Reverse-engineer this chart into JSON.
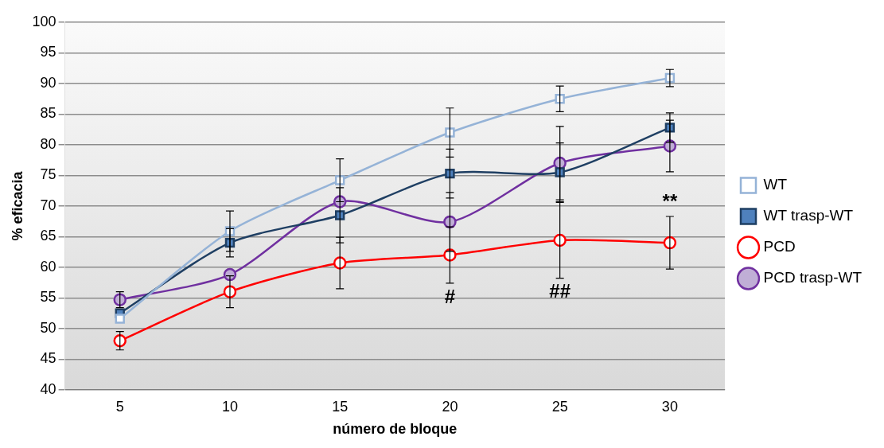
{
  "chart_data": {
    "type": "line",
    "xlabel": "número de bloque",
    "ylabel": "% eficacia",
    "categories": [
      "5",
      "10",
      "15",
      "20",
      "25",
      "30"
    ],
    "ylim": [
      40,
      100
    ],
    "yticks": [
      40,
      45,
      50,
      55,
      60,
      65,
      70,
      75,
      80,
      85,
      90,
      95,
      100
    ],
    "grid": "y",
    "legend": "right",
    "series": [
      {
        "name": "WT",
        "color": "#95b3d7",
        "marker": "square",
        "values": [
          51.6,
          65.9,
          74.2,
          82,
          87.5,
          90.9
        ],
        "errors": [
          null,
          3.3,
          3.5,
          4,
          2.1,
          1.4
        ]
      },
      {
        "name": "WT trasp-WT",
        "color": "#1f3f63",
        "marker": "square",
        "values": [
          52.5,
          64,
          68.5,
          75.3,
          75.5,
          82.8
        ],
        "errors": [
          null,
          2.3,
          4.5,
          4,
          4.8,
          2.4
        ]
      },
      {
        "name": "PCD",
        "color": "#ff0000",
        "marker": "circle",
        "values": [
          48,
          56,
          60.7,
          62,
          64.4,
          64
        ],
        "errors": [
          1.5,
          2.6,
          4.2,
          4.6,
          6.2,
          4.3
        ]
      },
      {
        "name": "PCD trasp-WT",
        "color": "#7030a0",
        "marker": "circle",
        "values": [
          54.7,
          58.8,
          70.7,
          67.4,
          77,
          79.8
        ],
        "errors": [
          1.3,
          null,
          null,
          4.8,
          6,
          4.2
        ]
      }
    ],
    "annotations": [
      "#",
      "##",
      "**"
    ]
  }
}
